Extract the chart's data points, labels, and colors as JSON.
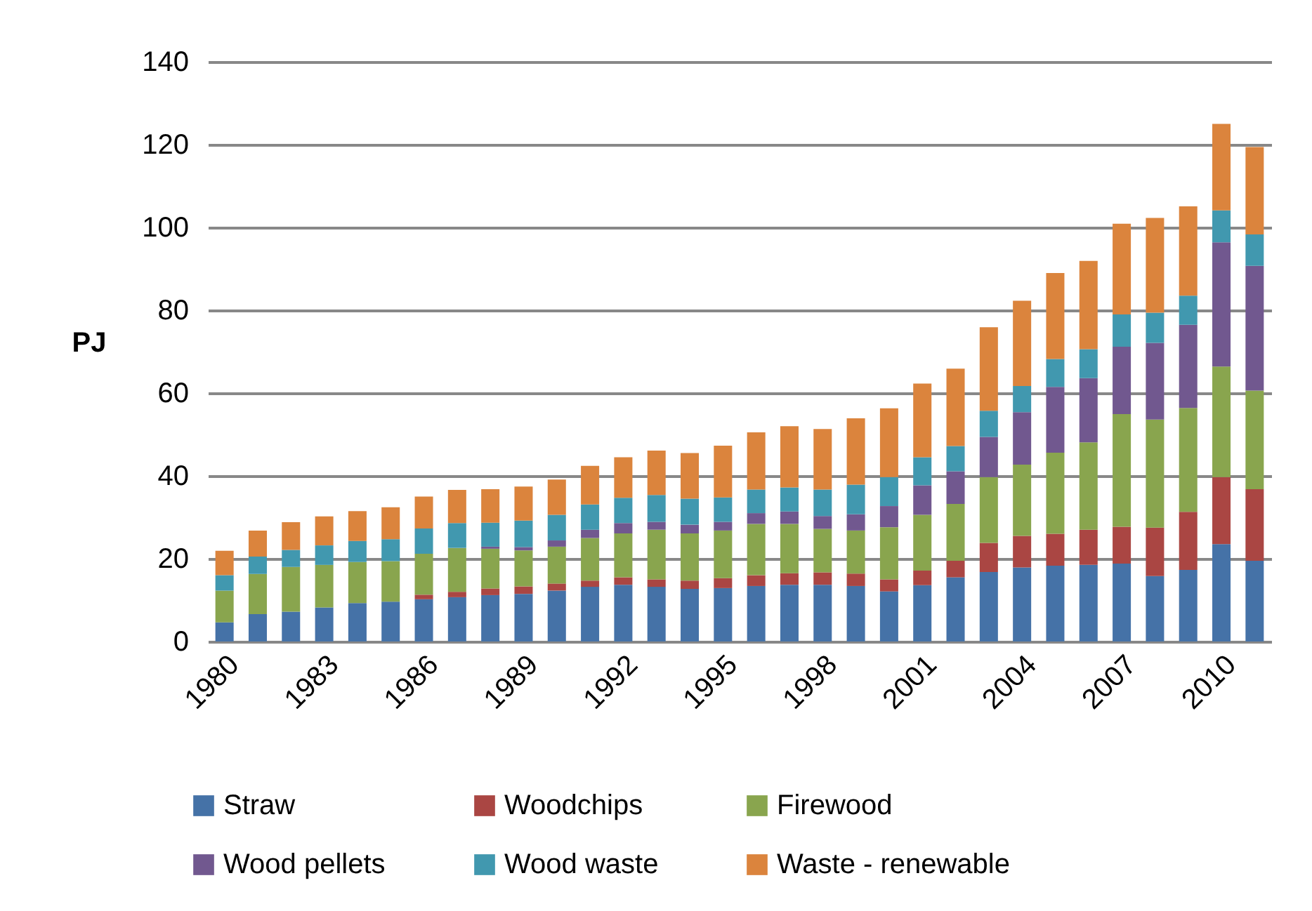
{
  "chart_data": {
    "type": "bar",
    "stacked": true,
    "ylabel": "PJ",
    "categories": [
      "1980",
      null,
      null,
      "1983",
      null,
      null,
      "1986",
      null,
      null,
      "1989",
      null,
      null,
      "1992",
      null,
      null,
      "1995",
      null,
      null,
      "1998",
      null,
      null,
      "2001",
      null,
      null,
      "2004",
      null,
      null,
      "2007",
      null,
      null,
      "2010",
      null
    ],
    "series": [
      {
        "name": "Straw",
        "color": "#4572a7",
        "values": [
          4.6,
          6.6,
          7.2,
          8.2,
          9.3,
          9.6,
          10.2,
          10.7,
          11.2,
          11.5,
          12.3,
          13.2,
          13.7,
          13.2,
          12.7,
          12.9,
          13.4,
          13.7,
          13.7,
          13.4,
          12.1,
          13.6,
          15.5,
          16.8,
          17.9,
          18.3,
          18.5,
          18.8,
          15.8,
          17.3,
          23.5,
          19.5
        ]
      },
      {
        "name": "Woodchips",
        "color": "#aa4643",
        "values": [
          0,
          0,
          0,
          0,
          0,
          0,
          1.1,
          1.3,
          1.6,
          1.8,
          1.7,
          1.5,
          1.8,
          1.8,
          2.0,
          2.4,
          2.6,
          2.8,
          3.0,
          3.0,
          2.9,
          3.5,
          4.0,
          7.0,
          7.6,
          7.7,
          8.5,
          8.9,
          11.7,
          14.0,
          16.2,
          17.3
        ]
      },
      {
        "name": "Firewood",
        "color": "#89a54e",
        "values": [
          7.7,
          9.7,
          10.8,
          10.3,
          9.9,
          9.8,
          9.9,
          10.6,
          9.6,
          8.7,
          8.9,
          10.3,
          10.6,
          12.0,
          11.4,
          11.5,
          12.4,
          11.9,
          10.5,
          10.4,
          12.6,
          13.5,
          13.7,
          15.9,
          17.2,
          19.6,
          21.1,
          27.2,
          26.1,
          25.1,
          26.7,
          23.8
        ]
      },
      {
        "name": "Wood pellets",
        "color": "#71588f",
        "values": [
          0,
          0,
          0,
          0,
          0,
          0,
          0,
          0,
          0.5,
          0.8,
          1.5,
          2.0,
          2.5,
          1.9,
          2.1,
          2.1,
          2.6,
          3.0,
          3.1,
          3.9,
          5.1,
          7.1,
          7.9,
          9.7,
          12.7,
          15.9,
          15.5,
          16.3,
          18.5,
          20.1,
          30.0,
          30.1
        ]
      },
      {
        "name": "Wood waste",
        "color": "#4198af",
        "values": [
          3.7,
          4.2,
          4.1,
          4.7,
          5.1,
          5.3,
          6.1,
          6.0,
          5.8,
          6.4,
          6.2,
          6.1,
          6.1,
          6.5,
          6.3,
          5.9,
          5.7,
          5.8,
          6.4,
          7.2,
          7.0,
          6.8,
          6.1,
          6.3,
          6.3,
          6.7,
          7.0,
          7.8,
          7.3,
          7.0,
          7.7,
          7.6
        ]
      },
      {
        "name": "Waste - renewable",
        "color": "#db843d",
        "values": [
          5.9,
          6.3,
          6.7,
          7.0,
          7.2,
          7.7,
          7.7,
          8.0,
          8.1,
          8.2,
          8.5,
          9.3,
          9.8,
          10.7,
          11.0,
          12.5,
          13.8,
          14.8,
          14.6,
          16.0,
          16.6,
          17.8,
          18.7,
          20.2,
          20.6,
          20.8,
          21.3,
          21.9,
          22.9,
          21.6,
          20.9,
          21.1
        ]
      }
    ],
    "ylim": [
      0,
      140
    ],
    "yticks": [
      0,
      20,
      40,
      60,
      80,
      100,
      120,
      140
    ],
    "grid": "y",
    "legend": "bottom"
  }
}
